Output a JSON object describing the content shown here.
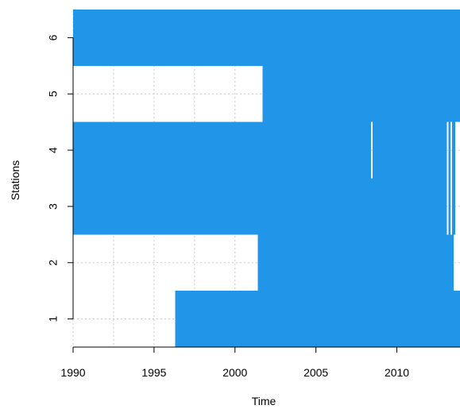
{
  "chart_data": {
    "type": "availability",
    "xlabel": "Time",
    "ylabel": "Stations",
    "xlim": [
      1990,
      2013.9
    ],
    "ylim": [
      0.5,
      6.5
    ],
    "x_ticks": [
      1990,
      1995,
      2000,
      2005,
      2010
    ],
    "x_tick_labels": [
      "1990",
      "1995",
      "2000",
      "2005",
      "2010"
    ],
    "y_ticks": [
      1,
      2,
      3,
      4,
      5,
      6
    ],
    "y_tick_labels": [
      "1",
      "2",
      "3",
      "4",
      "5",
      "6"
    ],
    "grid": true,
    "bar_color": "#2196e8",
    "stations": [
      {
        "station": "1",
        "available": [
          [
            1996.3,
            2013.9
          ]
        ]
      },
      {
        "station": "2",
        "available": [
          [
            1990.0,
            1990.0
          ],
          [
            2001.4,
            2013.5
          ]
        ]
      },
      {
        "station": "3",
        "available": [
          [
            1990.0,
            2013.1
          ],
          [
            2013.2,
            2013.3
          ],
          [
            2013.4,
            2013.6
          ]
        ]
      },
      {
        "station": "4",
        "available": [
          [
            1990.0,
            2008.4
          ],
          [
            2008.5,
            2013.1
          ],
          [
            2013.2,
            2013.3
          ],
          [
            2013.4,
            2013.6
          ]
        ]
      },
      {
        "station": "5",
        "available": [
          [
            2001.7,
            2013.9
          ]
        ]
      },
      {
        "station": "6",
        "available": [
          [
            1990.0,
            2013.9
          ]
        ]
      }
    ]
  }
}
